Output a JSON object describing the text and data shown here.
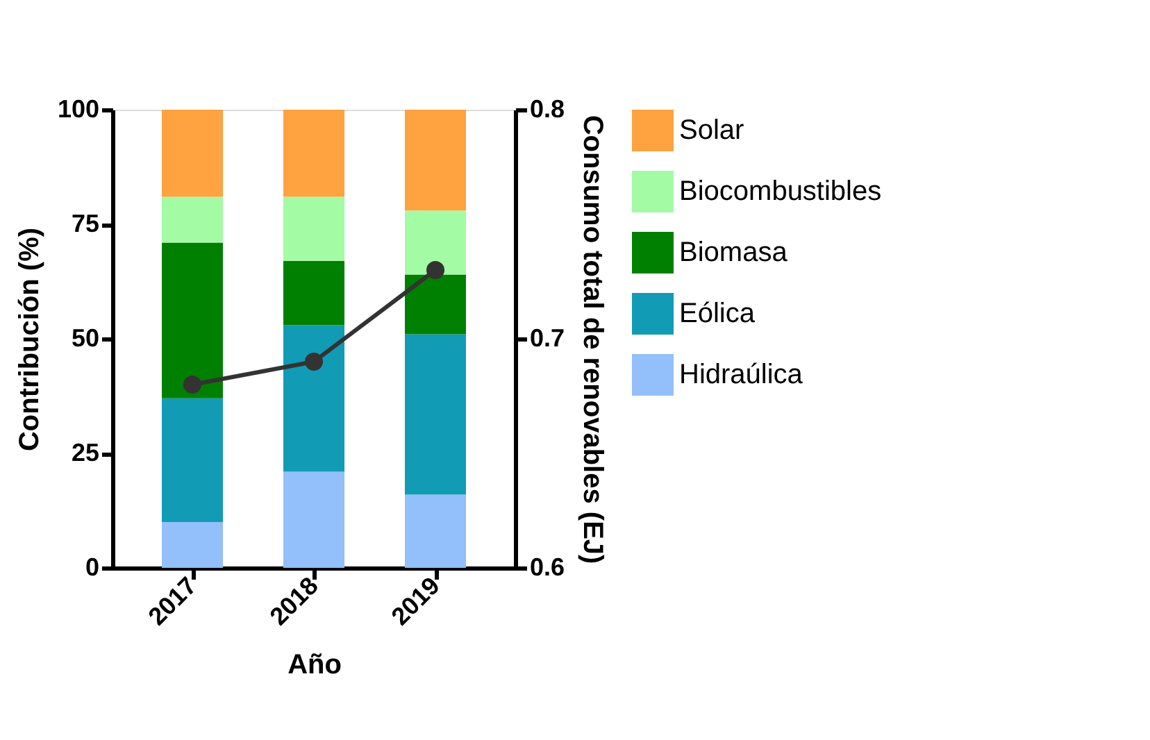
{
  "chart_data": {
    "type": "bar",
    "stacked": true,
    "categories": [
      "2017",
      "2018",
      "2019"
    ],
    "xlabel": "Año",
    "ylabel": "Contribución (%)",
    "y2label": "Consumo total de renovables (EJ)",
    "ylim": [
      0,
      100
    ],
    "yticks": [
      0,
      25,
      50,
      75,
      100
    ],
    "y2lim": [
      0.6,
      0.8
    ],
    "y2ticks": [
      0.6,
      0.7,
      0.8
    ],
    "legend": "right",
    "grid": false,
    "series": [
      {
        "name": "Hidraúlica",
        "color": "#93bffa",
        "values": [
          10,
          21,
          16
        ]
      },
      {
        "name": "Eólica",
        "color": "#129bb5",
        "values": [
          27,
          32,
          35
        ]
      },
      {
        "name": "Biomasa",
        "color": "#008000",
        "values": [
          34,
          14,
          13
        ]
      },
      {
        "name": "Biocombustibles",
        "color": "#a3fca3",
        "values": [
          10,
          14,
          14
        ]
      },
      {
        "name": "Solar",
        "color": "#ffa240",
        "values": [
          19,
          19,
          22
        ]
      },
      {
        "type": "line",
        "axis": "y2",
        "color": "#333333",
        "marker": "circle",
        "line_style": "solid",
        "values": [
          0.68,
          0.69,
          0.73
        ]
      }
    ]
  }
}
